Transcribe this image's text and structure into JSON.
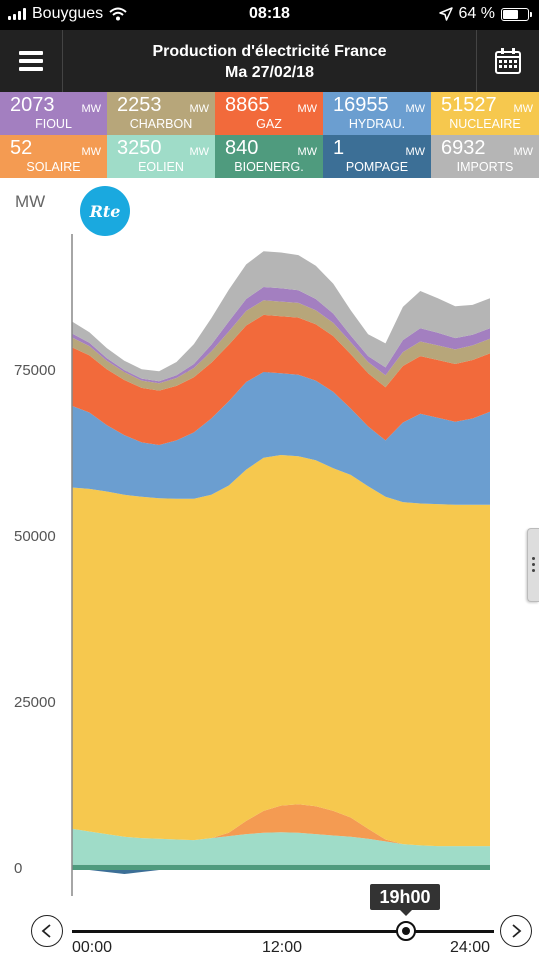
{
  "status_bar": {
    "carrier": "Bouygues",
    "time": "08:18",
    "battery": "64 %",
    "battery_level": 0.64,
    "icons": [
      "signal-icon",
      "wifi-icon",
      "location-arrow-icon",
      "battery-icon"
    ]
  },
  "header": {
    "title": "Production d'électricité France",
    "date": "Ma 27/02/18",
    "menu_icon": "menu-icon",
    "calendar_icon": "calendar-icon"
  },
  "tiles": [
    {
      "key": "fioul",
      "value": "2073",
      "unit": "MW",
      "label": "FIOUL",
      "color": "#a37fc0"
    },
    {
      "key": "charbon",
      "value": "2253",
      "unit": "MW",
      "label": "CHARBON",
      "color": "#b7a67a"
    },
    {
      "key": "gaz",
      "value": "8865",
      "unit": "MW",
      "label": "GAZ",
      "color": "#f26a3b"
    },
    {
      "key": "hydrau",
      "value": "16955",
      "unit": "MW",
      "label": "HYDRAU.",
      "color": "#6b9ed0"
    },
    {
      "key": "nucleaire",
      "value": "51527",
      "unit": "MW",
      "label": "NUCLEAIRE",
      "color": "#f6c84e"
    },
    {
      "key": "solaire",
      "value": "52",
      "unit": "MW",
      "label": "SOLAIRE",
      "color": "#f49b52"
    },
    {
      "key": "eolien",
      "value": "3250",
      "unit": "MW",
      "label": "EOLIEN",
      "color": "#9fdcc8"
    },
    {
      "key": "bioenerg",
      "value": "840",
      "unit": "MW",
      "label": "BIOENERG.",
      "color": "#4f9b7e"
    },
    {
      "key": "pompage",
      "value": "1",
      "unit": "MW",
      "label": "POMPAGE",
      "color": "#3c6f96"
    },
    {
      "key": "imports",
      "value": "6932",
      "unit": "MW",
      "label": "IMPORTS",
      "color": "#b5b5b5"
    }
  ],
  "chart": {
    "unit_label": "MW",
    "logo_text": "Rte",
    "side_handle_icon": "more-vertical-icon"
  },
  "timeline": {
    "current_time": "19h00",
    "current_value": 19,
    "start_label": "00:00",
    "mid_label": "12:00",
    "end_label": "24:00",
    "prev_icon": "chevron-left-icon",
    "next_icon": "chevron-right-icon"
  },
  "chart_data": {
    "type": "area",
    "stacked": true,
    "ylabel": "MW",
    "ylim": [
      0,
      95000
    ],
    "yticks": [
      "0",
      "25000",
      "50000",
      "75000"
    ],
    "ytick_values": [
      0,
      25000,
      50000,
      75000
    ],
    "xticks": [
      "00:00",
      "12:00",
      "24:00"
    ],
    "xtick_values": [
      0,
      12,
      24
    ],
    "grid": "dashed-horizontal",
    "x": [
      0,
      1,
      2,
      3,
      4,
      5,
      6,
      7,
      8,
      9,
      10,
      11,
      12,
      13,
      14,
      15,
      16,
      17,
      18,
      19,
      20,
      21,
      22,
      23,
      24
    ],
    "series": [
      {
        "name": "BIOENERG.",
        "color": "#4f9b7e",
        "values": [
          800,
          800,
          800,
          800,
          800,
          800,
          800,
          800,
          800,
          800,
          800,
          800,
          800,
          800,
          800,
          800,
          800,
          800,
          800,
          800,
          800,
          800,
          800,
          800,
          800
        ]
      },
      {
        "name": "EOLIEN",
        "color": "#9fdcc8",
        "values": [
          5400,
          5000,
          4600,
          4200,
          4000,
          3900,
          3800,
          3700,
          4000,
          4300,
          4600,
          4800,
          4900,
          4800,
          4600,
          4400,
          4200,
          3900,
          3500,
          3100,
          2900,
          2800,
          2800,
          2800,
          2800
        ]
      },
      {
        "name": "SOLAIRE",
        "color": "#f49b52",
        "values": [
          0,
          0,
          0,
          0,
          0,
          0,
          0,
          0,
          0,
          500,
          2000,
          3300,
          4000,
          4300,
          4200,
          3700,
          2900,
          1500,
          300,
          0,
          0,
          0,
          0,
          0,
          0
        ]
      },
      {
        "name": "NUCLEAIRE",
        "color": "#f6c84e",
        "values": [
          51400,
          51600,
          51600,
          51500,
          51400,
          51300,
          51300,
          51400,
          51700,
          52300,
          52900,
          53200,
          52800,
          52400,
          52100,
          51600,
          51600,
          51600,
          51600,
          51500,
          51500,
          51500,
          51400,
          51400,
          51400
        ]
      },
      {
        "name": "HYDRAU.",
        "color": "#6b9ed0",
        "values": [
          12300,
          11500,
          10000,
          9000,
          8200,
          8000,
          8800,
          10000,
          11500,
          12700,
          13200,
          12900,
          12300,
          12300,
          12000,
          11500,
          10000,
          9000,
          8500,
          12000,
          13500,
          13000,
          12500,
          13000,
          14000
        ]
      },
      {
        "name": "GAZ",
        "color": "#f26a3b",
        "values": [
          8800,
          8600,
          8400,
          8300,
          8200,
          8200,
          8200,
          8300,
          8400,
          8500,
          8500,
          8600,
          8600,
          8600,
          8500,
          8400,
          8200,
          8000,
          8000,
          8500,
          8700,
          8700,
          8700,
          8800,
          8800
        ]
      },
      {
        "name": "CHARBON",
        "color": "#b7a67a",
        "values": [
          1500,
          1400,
          1300,
          1200,
          1100,
          1100,
          1200,
          1400,
          1700,
          2000,
          2200,
          2200,
          2200,
          2200,
          2100,
          2000,
          1800,
          1700,
          1800,
          2100,
          2200,
          2200,
          2200,
          2200,
          2200
        ]
      },
      {
        "name": "FIOUL",
        "color": "#a37fc0",
        "values": [
          600,
          500,
          400,
          300,
          300,
          300,
          400,
          600,
          1000,
          1500,
          1800,
          2000,
          2000,
          1900,
          1700,
          1400,
          1000,
          900,
          1200,
          1800,
          2000,
          1900,
          1700,
          1600,
          1600
        ]
      },
      {
        "name": "POMPAGE",
        "color": "#3c6f96",
        "values": [
          0,
          0,
          -300,
          -600,
          -300,
          0,
          0,
          0,
          0,
          0,
          0,
          0,
          0,
          0,
          0,
          0,
          0,
          0,
          0,
          0,
          0,
          0,
          0,
          0,
          0
        ]
      },
      {
        "name": "IMPORTS",
        "color": "#b5b5b5",
        "values": [
          1800,
          1600,
          1500,
          1400,
          1400,
          1500,
          2000,
          3000,
          4000,
          4800,
          5200,
          5400,
          5400,
          5300,
          5000,
          4500,
          3800,
          3300,
          3600,
          5000,
          5600,
          5200,
          4800,
          4500,
          4500
        ]
      }
    ]
  }
}
